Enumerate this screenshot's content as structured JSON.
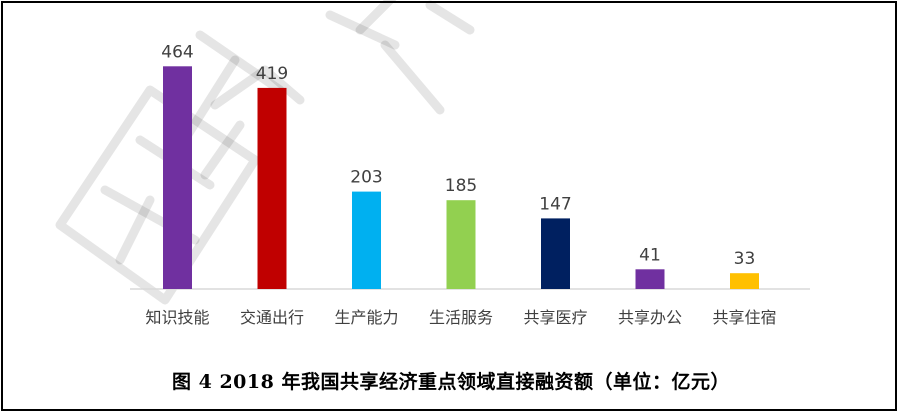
{
  "caption": "图 4   2018 年我国共享经济重点领域直接融资额（单位：亿元）",
  "chart_data": {
    "type": "bar",
    "title": "",
    "xlabel": "",
    "ylabel": "",
    "ylim": [
      0,
      500
    ],
    "grid": false,
    "legend": "none",
    "categories": [
      "知识技能",
      "交通出行",
      "生产能力",
      "生活服务",
      "共享医疗",
      "共享办公",
      "共享住宿"
    ],
    "values": [
      464,
      419,
      203,
      185,
      147,
      41,
      33
    ],
    "colors": [
      "#7030A0",
      "#C00000",
      "#00B0F0",
      "#92D050",
      "#002060",
      "#7030A0",
      "#FFC000"
    ]
  }
}
